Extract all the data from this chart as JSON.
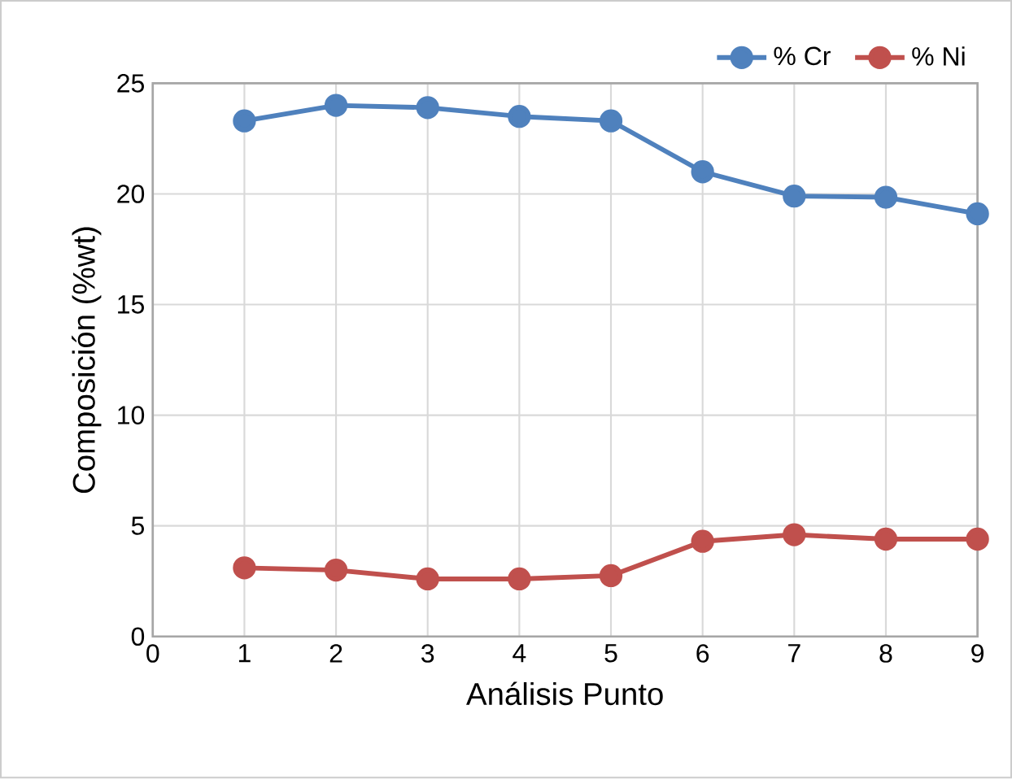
{
  "chart_data": {
    "type": "line",
    "xlabel": "Análisis Punto",
    "ylabel": "Composición (%wt)",
    "x": [
      1,
      2,
      3,
      4,
      5,
      6,
      7,
      8,
      9
    ],
    "series": [
      {
        "name": "% Cr",
        "color": "#4f81bd",
        "values": [
          23.3,
          24.0,
          23.9,
          23.5,
          23.3,
          21.0,
          19.9,
          19.85,
          19.1
        ]
      },
      {
        "name": "% Ni",
        "color": "#c0504d",
        "values": [
          3.1,
          3.0,
          2.6,
          2.6,
          2.75,
          4.3,
          4.6,
          4.4,
          4.4
        ]
      }
    ],
    "xlim": [
      0,
      9
    ],
    "xticks": [
      0,
      1,
      2,
      3,
      4,
      5,
      6,
      7,
      8,
      9
    ],
    "ylim": [
      0,
      25
    ],
    "yticks": [
      0,
      5,
      10,
      15,
      20,
      25
    ],
    "grid": true,
    "legend": "top right",
    "marker": "circle",
    "line_style": "solid"
  }
}
